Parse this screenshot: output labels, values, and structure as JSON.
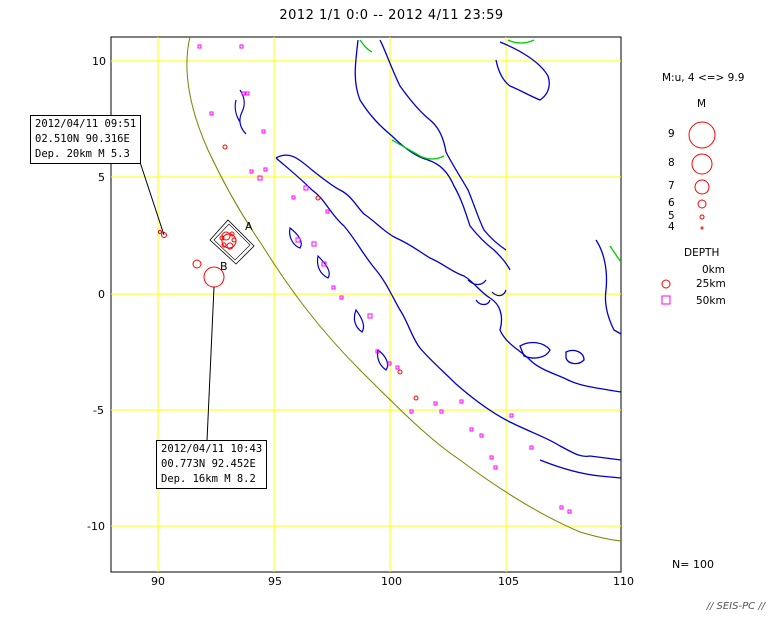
{
  "title": "2012 1/1 0:0 -- 2012 4/11 23:59",
  "map": {
    "x_ticks": [
      "90",
      "95",
      "100",
      "105",
      "110"
    ],
    "y_ticks": [
      "10",
      "5",
      "0",
      "-5",
      "-10"
    ],
    "colors": {
      "grid": "#ffff00",
      "coast": "#0000cc",
      "border": "#00cc00",
      "trench": "#808000",
      "shallow": "#ff0000",
      "mid": "#ff00ff"
    }
  },
  "callouts": [
    {
      "line1": "2012/04/11 09:51",
      "line2": "02.510N  90.316E",
      "line3": "Dep. 20km   M 5.3"
    },
    {
      "line1": "2012/04/11 10:43",
      "line2": "00.773N  92.452E",
      "line3": "Dep. 16km   M 8.2"
    }
  ],
  "markers": {
    "a": "A",
    "b": "B"
  },
  "legend": {
    "mag_header": "M:u, 4 <=> 9.9",
    "mag_title": "M",
    "mags": [
      "9",
      "8",
      "7",
      "6",
      "5",
      "4"
    ],
    "depth_title": "DEPTH",
    "depths": [
      "0km",
      "25km",
      "50km"
    ]
  },
  "count": "N= 100",
  "footer": "// SEIS-PC //"
}
